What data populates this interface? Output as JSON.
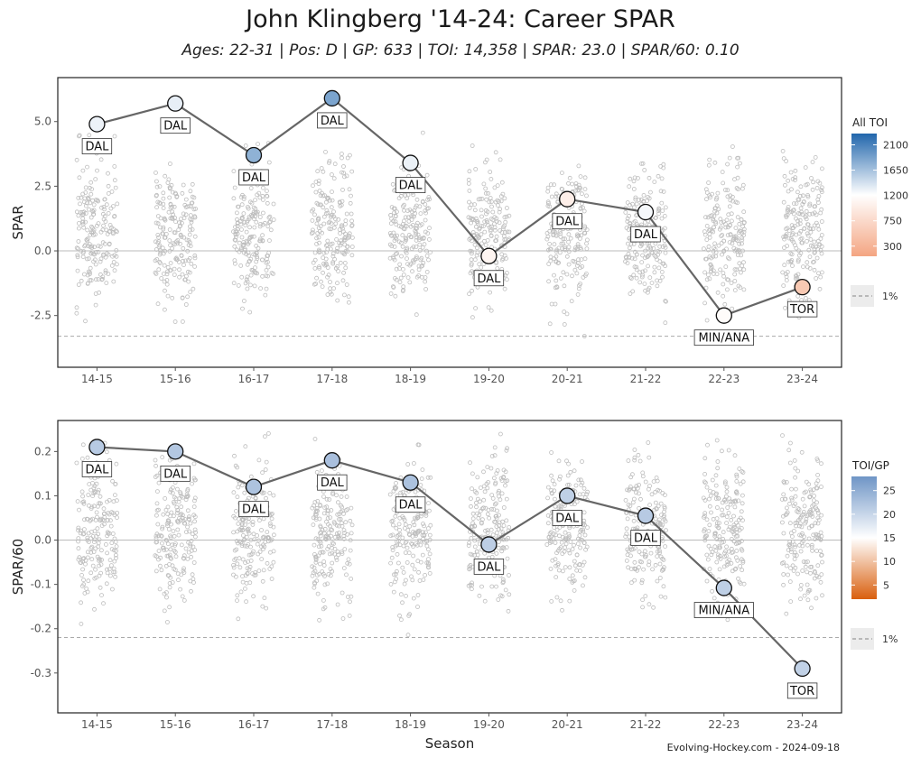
{
  "title": "John Klingberg '14-24: Career SPAR",
  "subtitle": "Ages: 22-31 | Pos: D | GP: 633 | TOI: 14,358 | SPAR: 23.0 | SPAR/60: 0.10",
  "footer": "Evolving-Hockey.com - 2024-09-18",
  "chart_data": [
    {
      "type": "scatter",
      "xlabel": "",
      "ylabel": "SPAR",
      "ylim": [
        -4.5,
        6.7
      ],
      "yticks": [
        -2.5,
        0.0,
        2.5,
        5.0
      ],
      "ytick_labels": [
        "-2.5",
        "0.0",
        "2.5",
        "5.0"
      ],
      "categories": [
        "14-15",
        "15-16",
        "16-17",
        "17-18",
        "18-19",
        "19-20",
        "20-21",
        "21-22",
        "22-23",
        "23-24"
      ],
      "series": [
        {
          "values": [
            4.9,
            5.7,
            3.7,
            5.9,
            3.4,
            -0.2,
            2.0,
            1.5,
            -2.5,
            -1.4
          ]
        }
      ],
      "teams": [
        "DAL",
        "DAL",
        "DAL",
        "DAL",
        "DAL",
        "DAL",
        "DAL",
        "DAL",
        "MIN/ANA",
        "TOR"
      ],
      "color_metric": [
        1300,
        1330,
        1760,
        1860,
        1310,
        1090,
        1010,
        1260,
        1170,
        550
      ],
      "reference_lines": {
        "top": 6.7,
        "bottom": -3.3,
        "zero": 0
      },
      "legend": {
        "title": "All TOI",
        "ticks": [
          2100,
          1650,
          1200,
          750,
          300
        ],
        "range": [
          120,
          2300
        ],
        "colors": [
          "#f4a582",
          "#ffffff",
          "#2166ac"
        ],
        "percentile_label": "1%"
      }
    },
    {
      "type": "scatter",
      "xlabel": "Season",
      "ylabel": "SPAR/60",
      "ylim": [
        -0.39,
        0.27
      ],
      "yticks": [
        -0.3,
        -0.2,
        -0.1,
        0.0,
        0.1,
        0.2
      ],
      "ytick_labels": [
        "-0.3",
        "-0.2",
        "-0.1",
        "0.0",
        "0.1",
        "0.2"
      ],
      "categories": [
        "14-15",
        "15-16",
        "16-17",
        "17-18",
        "18-19",
        "19-20",
        "20-21",
        "21-22",
        "22-23",
        "23-24"
      ],
      "series": [
        {
          "values": [
            0.21,
            0.2,
            0.12,
            0.18,
            0.13,
            -0.01,
            0.1,
            0.055,
            -0.108,
            -0.29
          ]
        }
      ],
      "teams": [
        "DAL",
        "DAL",
        "DAL",
        "DAL",
        "DAL",
        "DAL",
        "DAL",
        "DAL",
        "MIN/ANA",
        "TOR"
      ],
      "color_metric": [
        21.5,
        21.9,
        22.4,
        22.8,
        22.5,
        21.0,
        20.8,
        21.5,
        20.9,
        20.6
      ],
      "reference_lines": {
        "bottom": -0.22,
        "zero": 0
      },
      "legend": {
        "title": "TOI/GP",
        "ticks": [
          25,
          20,
          15,
          10,
          5
        ],
        "range": [
          2,
          28
        ],
        "colors": [
          "#d95f0e",
          "#ffffff",
          "#6f95c6"
        ],
        "percentile_label": "1%"
      }
    }
  ]
}
